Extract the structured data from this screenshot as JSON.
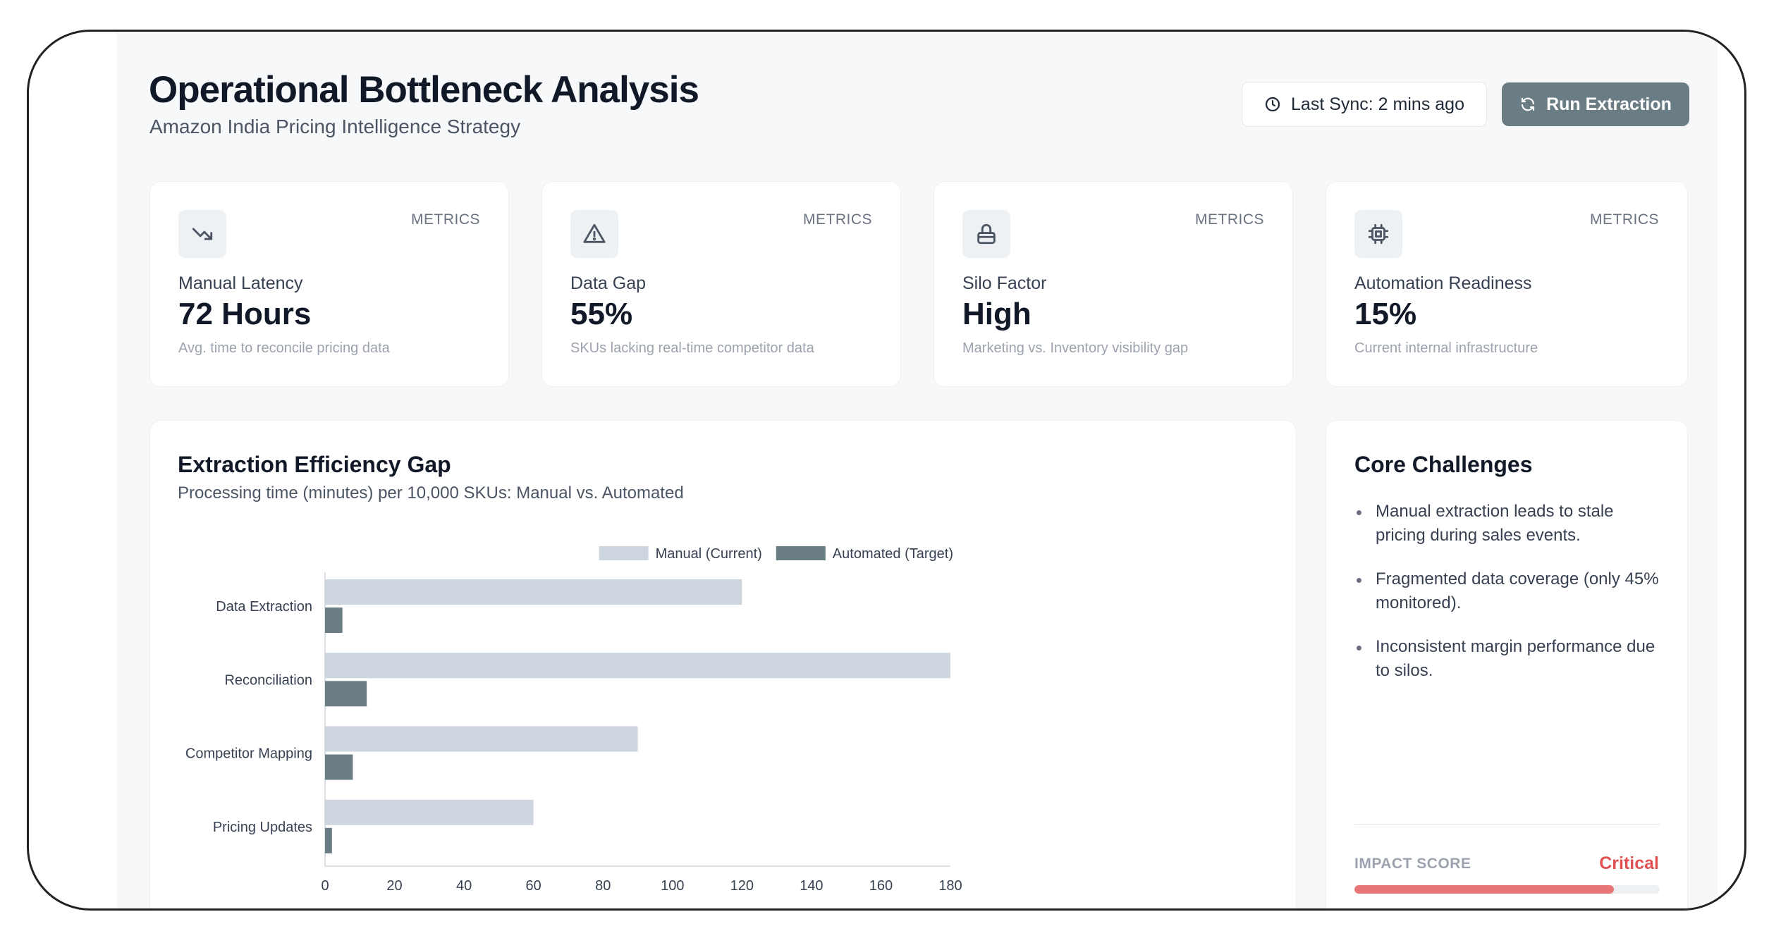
{
  "header": {
    "title": "Operational Bottleneck Analysis",
    "subtitle": "Amazon India Pricing Intelligence Strategy",
    "sync_label": "Last Sync: 2 mins ago",
    "run_button": "Run Extraction"
  },
  "metrics": [
    {
      "tag": "METRICS",
      "icon": "trending-down-icon",
      "label": "Manual Latency",
      "value": "72 Hours",
      "desc": "Avg. time to reconcile pricing data"
    },
    {
      "tag": "METRICS",
      "icon": "warning-triangle-icon",
      "label": "Data Gap",
      "value": "55%",
      "desc": "SKUs lacking real-time competitor data"
    },
    {
      "tag": "METRICS",
      "icon": "lock-icon",
      "label": "Silo Factor",
      "value": "High",
      "desc": "Marketing vs. Inventory visibility gap"
    },
    {
      "tag": "METRICS",
      "icon": "cpu-chip-icon",
      "label": "Automation Readiness",
      "value": "15%",
      "desc": "Current internal infrastructure"
    }
  ],
  "chart": {
    "title": "Extraction Efficiency Gap",
    "subtitle": "Processing time (minutes) per 10,000 SKUs: Manual vs. Automated"
  },
  "chart_data": {
    "type": "bar",
    "orientation": "horizontal",
    "categories": [
      "Data Extraction",
      "Reconciliation",
      "Competitor Mapping",
      "Pricing Updates"
    ],
    "series": [
      {
        "name": "Manual (Current)",
        "values": [
          120,
          180,
          90,
          60
        ],
        "color": "#cdd5df"
      },
      {
        "name": "Automated (Target)",
        "values": [
          5,
          12,
          8,
          2
        ],
        "color": "#6b7d84"
      }
    ],
    "xlim": [
      0,
      180
    ],
    "xticks": [
      "0",
      "20",
      "40",
      "60",
      "80",
      "100",
      "120",
      "140",
      "160",
      "180"
    ],
    "xlabel": "",
    "ylabel": "",
    "legend_position": "top-right",
    "grid": false
  },
  "challenges": {
    "title": "Core Challenges",
    "items": [
      "Manual extraction leads to stale pricing during sales events.",
      "Fragmented data coverage (only 45% monitored).",
      "Inconsistent margin performance due to silos."
    ],
    "impact_label": "IMPACT SCORE",
    "impact_value": "Critical",
    "impact_level": 0.85
  },
  "colors": {
    "accent": "#6b7d84",
    "critical": "#e05252",
    "impact_bar": "#e87676"
  }
}
